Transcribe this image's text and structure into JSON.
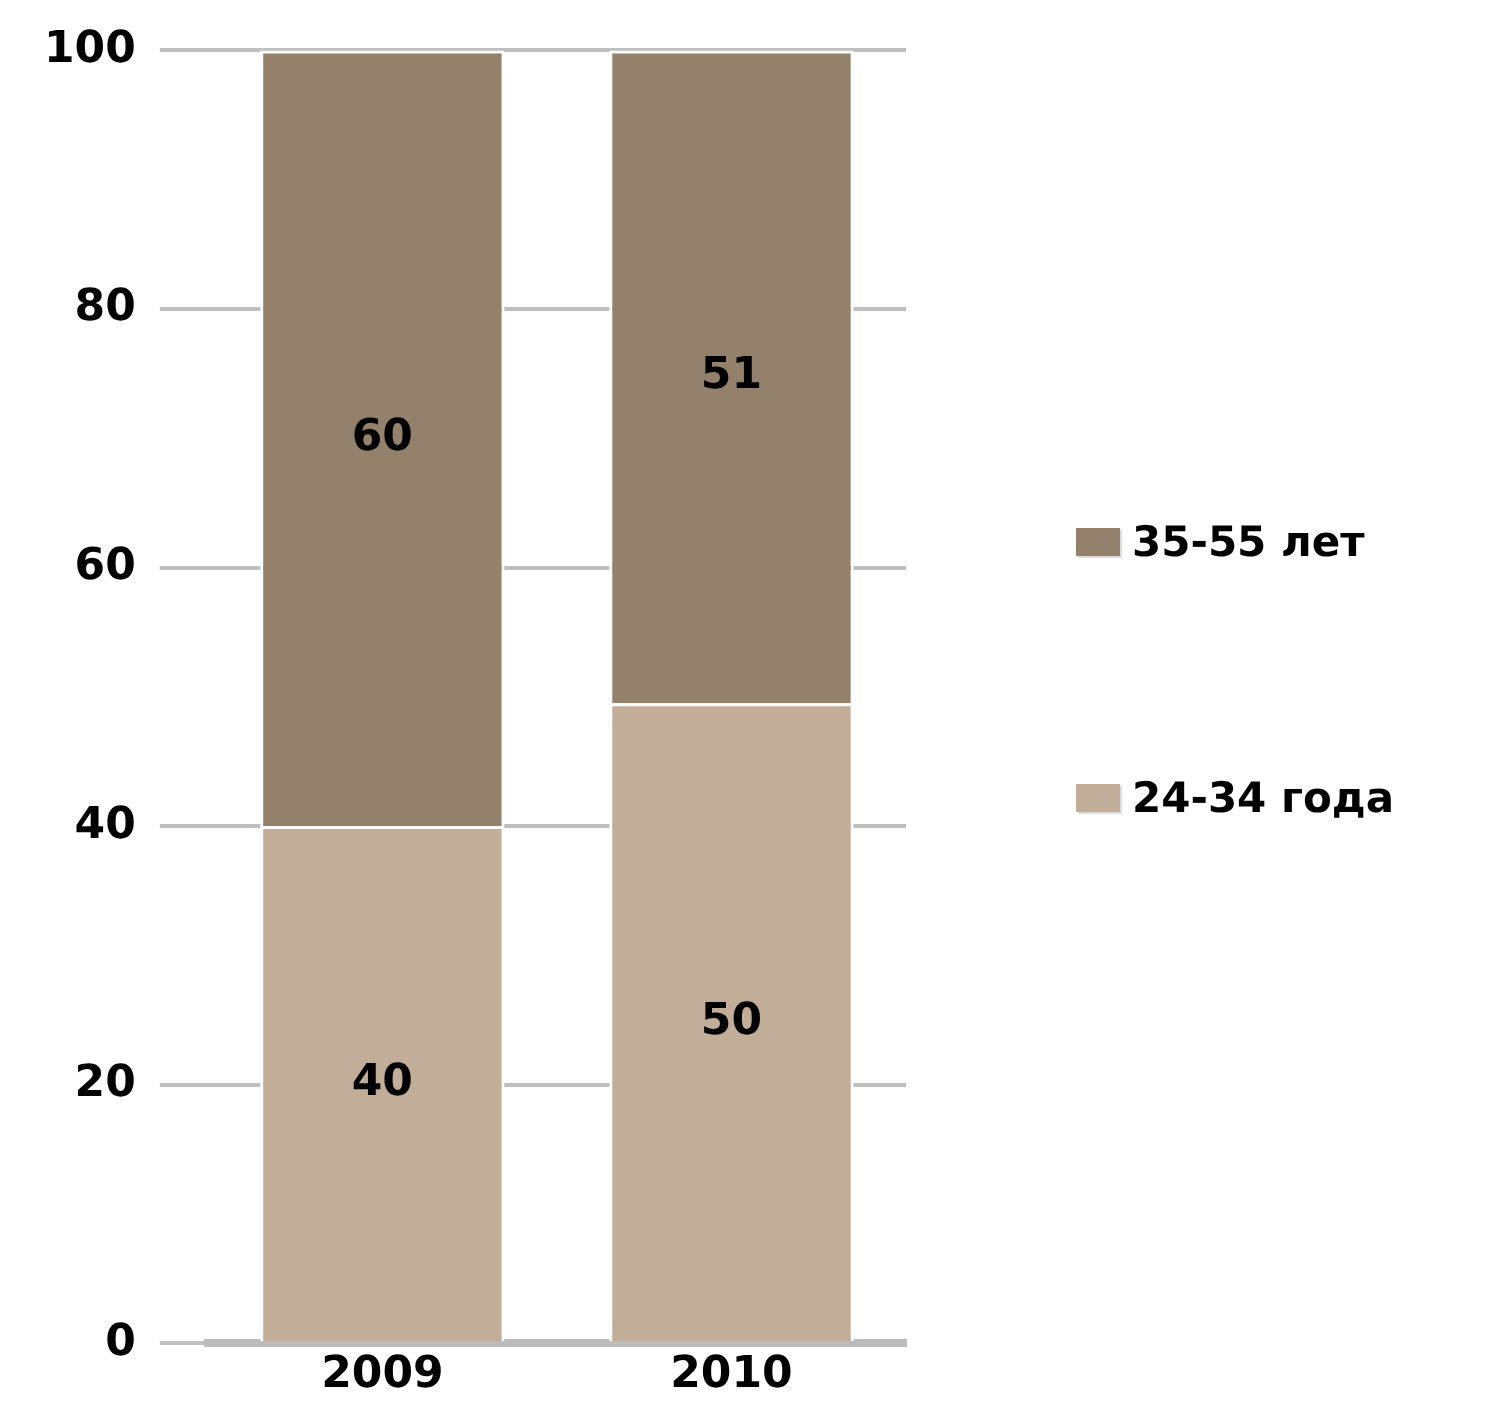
{
  "chart_data": {
    "type": "bar",
    "stacked": true,
    "categories": [
      "2009",
      "2010"
    ],
    "series": [
      {
        "name": "24-34 года",
        "color": "#c2ae98",
        "values": [
          40,
          49.5
        ],
        "value_labels": [
          "40",
          "50"
        ]
      },
      {
        "name": "35-55 лет",
        "color": "#94816b",
        "values": [
          60,
          50.5
        ],
        "value_labels": [
          "60",
          "51"
        ]
      }
    ],
    "ylim": [
      0,
      100
    ],
    "yticks": [
      0,
      20,
      40,
      60,
      80,
      100
    ],
    "grid": "y",
    "legend": "right"
  }
}
